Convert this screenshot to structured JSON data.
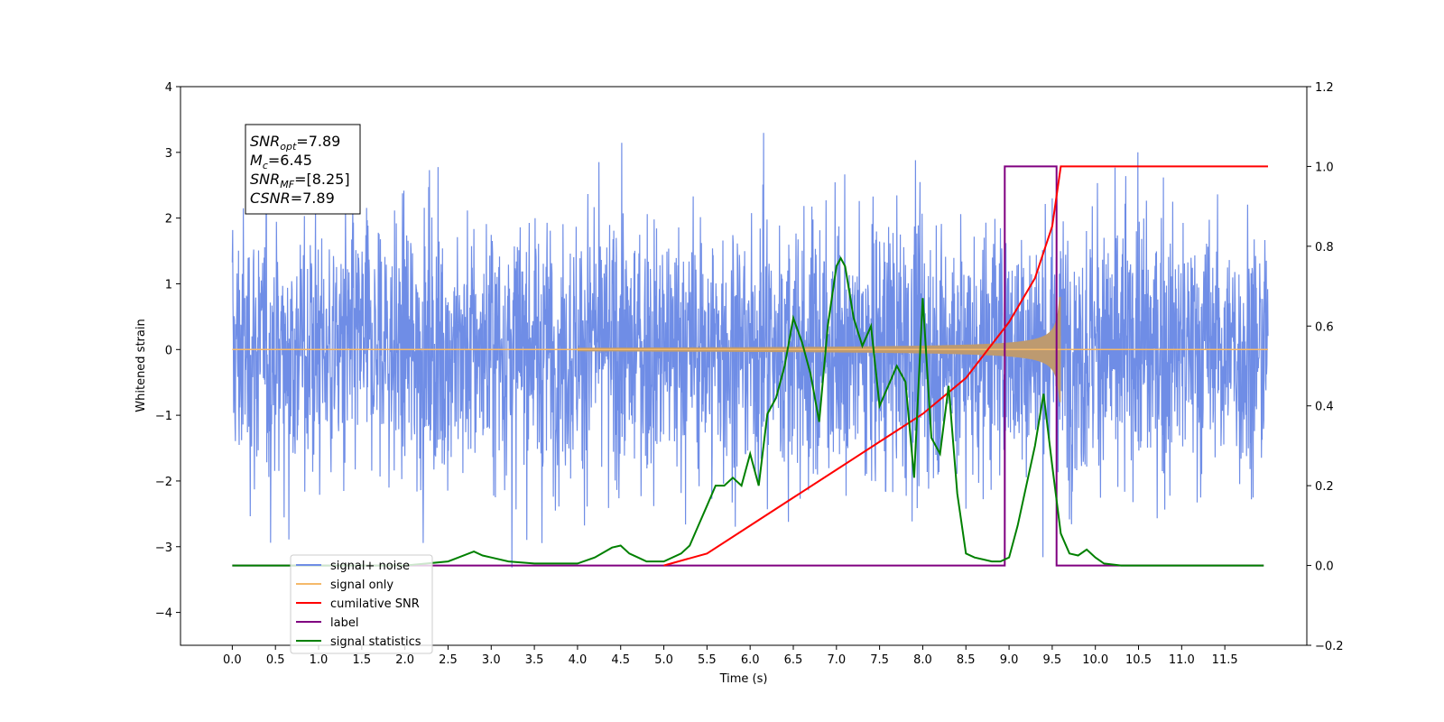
{
  "chart_data": {
    "type": "line",
    "xlabel": "Time (s)",
    "ylabel": "Whitened strain",
    "x_ticks": [
      "0.0",
      "0.5",
      "1.0",
      "1.5",
      "2.0",
      "2.5",
      "3.0",
      "3.5",
      "4.0",
      "4.5",
      "5.0",
      "5.5",
      "6.0",
      "6.5",
      "7.0",
      "7.5",
      "8.0",
      "8.5",
      "9.0",
      "9.5",
      "10.0",
      "10.5",
      "11.0",
      "11.5"
    ],
    "xlim": [
      -0.6,
      12.45
    ],
    "ylim": [
      -4.5,
      4.0
    ],
    "y_ticks": [
      "4",
      "3",
      "2",
      "1",
      "0",
      "−1",
      "−2",
      "−3",
      "−4"
    ],
    "y2lim": [
      -0.2,
      1.2
    ],
    "y2_ticks": [
      "1.2",
      "1.0",
      "0.8",
      "0.6",
      "0.4",
      "0.2",
      "0.0",
      "−0.2"
    ],
    "grid": false,
    "legend_position": "lower-left",
    "annotation": {
      "lines": [
        {
          "main": "SNR",
          "sub": "opt",
          "value": "=7.89"
        },
        {
          "main": "M",
          "sub": "c",
          "value": "=6.45"
        },
        {
          "main": "SNR",
          "sub": "MF",
          "value": "=[8.25]"
        },
        {
          "main": "CSNR",
          "sub": "",
          "value": "=7.89"
        }
      ]
    },
    "series": [
      {
        "name": "signal+ noise",
        "color": "#6f8de6",
        "axis": "left",
        "x_range": [
          0.0,
          12.0
        ],
        "noise_std": 1.0,
        "min": -4.0,
        "max": 3.6
      },
      {
        "name": "signal only",
        "color": "#f5b96a",
        "axis": "left",
        "x_range": [
          0.0,
          12.0
        ],
        "merger_time": 9.6,
        "peak_amplitude": 0.8
      },
      {
        "name": "cumilative SNR",
        "color": "#ff0000",
        "axis": "right",
        "x": [
          5.0,
          5.5,
          6.0,
          6.5,
          7.0,
          7.5,
          8.0,
          8.5,
          9.0,
          9.3,
          9.5,
          9.6,
          12.0
        ],
        "values": [
          0.0,
          0.03,
          0.1,
          0.17,
          0.24,
          0.31,
          0.38,
          0.47,
          0.61,
          0.72,
          0.85,
          1.0,
          1.0
        ]
      },
      {
        "name": "label",
        "color": "#800080",
        "axis": "right",
        "x": [
          0.0,
          8.95,
          8.95,
          9.55,
          9.55,
          11.95
        ],
        "values": [
          0.0,
          0.0,
          1.0,
          1.0,
          0.0,
          0.0
        ]
      },
      {
        "name": "signal statistics",
        "color": "#008000",
        "axis": "right",
        "x": [
          0.0,
          2.0,
          2.5,
          2.8,
          2.9,
          3.0,
          3.2,
          3.5,
          4.0,
          4.2,
          4.4,
          4.5,
          4.6,
          4.7,
          4.8,
          5.0,
          5.2,
          5.3,
          5.4,
          5.5,
          5.6,
          5.7,
          5.8,
          5.9,
          6.0,
          6.1,
          6.2,
          6.3,
          6.4,
          6.5,
          6.6,
          6.7,
          6.8,
          6.9,
          7.0,
          7.05,
          7.1,
          7.2,
          7.3,
          7.4,
          7.5,
          7.6,
          7.7,
          7.8,
          7.9,
          8.0,
          8.1,
          8.2,
          8.3,
          8.4,
          8.5,
          8.6,
          8.7,
          8.8,
          8.9,
          9.0,
          9.1,
          9.2,
          9.3,
          9.4,
          9.5,
          9.6,
          9.7,
          9.8,
          9.9,
          10.0,
          10.1,
          10.3,
          11.0,
          11.95
        ],
        "values": [
          0.0,
          0.0,
          0.01,
          0.035,
          0.025,
          0.02,
          0.01,
          0.005,
          0.005,
          0.02,
          0.045,
          0.05,
          0.03,
          0.02,
          0.01,
          0.01,
          0.03,
          0.05,
          0.1,
          0.15,
          0.2,
          0.2,
          0.22,
          0.2,
          0.28,
          0.2,
          0.38,
          0.42,
          0.5,
          0.62,
          0.56,
          0.48,
          0.36,
          0.6,
          0.75,
          0.77,
          0.75,
          0.62,
          0.55,
          0.6,
          0.4,
          0.45,
          0.5,
          0.46,
          0.22,
          0.67,
          0.32,
          0.28,
          0.45,
          0.18,
          0.03,
          0.02,
          0.015,
          0.01,
          0.01,
          0.02,
          0.1,
          0.2,
          0.3,
          0.43,
          0.25,
          0.08,
          0.03,
          0.025,
          0.04,
          0.02,
          0.005,
          0.0,
          0.0,
          0.0
        ]
      }
    ]
  }
}
